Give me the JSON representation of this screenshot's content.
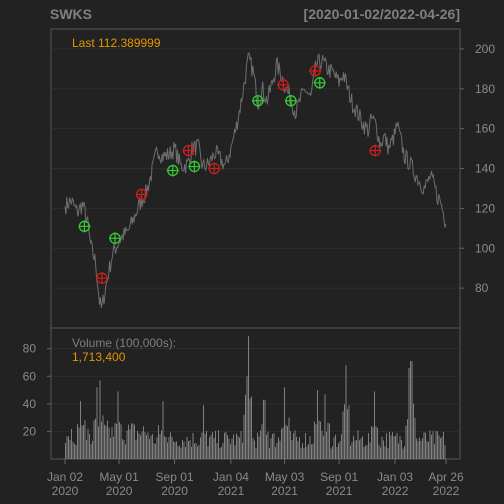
{
  "chart_data": {
    "type": "line",
    "title": "SWKS",
    "date_range": "[2020-01-02/2022-04-26]",
    "last_label": "Last 112.389999",
    "price_axis": {
      "ticks": [
        80,
        100,
        120,
        140,
        160,
        180,
        200
      ],
      "range": [
        60,
        210
      ],
      "side": "right"
    },
    "x_ticks": [
      {
        "label": "Jan 02",
        "sub": "2020",
        "date": "2020-01-02"
      },
      {
        "label": "May 01",
        "sub": "2020",
        "date": "2020-05-01"
      },
      {
        "label": "Sep 01",
        "sub": "2020",
        "date": "2020-09-01"
      },
      {
        "label": "Jan 04",
        "sub": "2021",
        "date": "2021-01-04"
      },
      {
        "label": "May 03",
        "sub": "2021",
        "date": "2021-05-03"
      },
      {
        "label": "Sep 01",
        "sub": "2021",
        "date": "2021-09-01"
      },
      {
        "label": "Jan 03",
        "sub": "2022",
        "date": "2022-01-03"
      },
      {
        "label": "Apr 26",
        "sub": "2022",
        "date": "2022-04-26"
      }
    ],
    "price_series": {
      "name": "SWKS",
      "color": "#6e6e6e",
      "points": [
        [
          "2020-01-02",
          121
        ],
        [
          "2020-01-15",
          124
        ],
        [
          "2020-01-29",
          118
        ],
        [
          "2020-02-10",
          122
        ],
        [
          "2020-02-20",
          114
        ],
        [
          "2020-02-28",
          101
        ],
        [
          "2020-03-10",
          93
        ],
        [
          "2020-03-18",
          74
        ],
        [
          "2020-03-23",
          69
        ],
        [
          "2020-04-01",
          80
        ],
        [
          "2020-04-15",
          96
        ],
        [
          "2020-04-27",
          102
        ],
        [
          "2020-05-08",
          106
        ],
        [
          "2020-05-20",
          108
        ],
        [
          "2020-06-01",
          114
        ],
        [
          "2020-06-15",
          122
        ],
        [
          "2020-06-30",
          128
        ],
        [
          "2020-07-15",
          140
        ],
        [
          "2020-07-25",
          150
        ],
        [
          "2020-08-05",
          146
        ],
        [
          "2020-08-20",
          147
        ],
        [
          "2020-09-01",
          150
        ],
        [
          "2020-09-15",
          141
        ],
        [
          "2020-09-30",
          142
        ],
        [
          "2020-10-10",
          150
        ],
        [
          "2020-10-23",
          151
        ],
        [
          "2020-11-02",
          141
        ],
        [
          "2020-11-15",
          142
        ],
        [
          "2020-11-30",
          148
        ],
        [
          "2020-12-10",
          145
        ],
        [
          "2020-12-23",
          141
        ],
        [
          "2021-01-04",
          150
        ],
        [
          "2021-01-15",
          160
        ],
        [
          "2021-01-27",
          174
        ],
        [
          "2021-02-05",
          186
        ],
        [
          "2021-02-12",
          195
        ],
        [
          "2021-02-22",
          189
        ],
        [
          "2021-03-05",
          173
        ],
        [
          "2021-03-15",
          180
        ],
        [
          "2021-03-25",
          174
        ],
        [
          "2021-04-05",
          182
        ],
        [
          "2021-04-15",
          192
        ],
        [
          "2021-04-28",
          186
        ],
        [
          "2021-05-03",
          182
        ],
        [
          "2021-05-10",
          178
        ],
        [
          "2021-05-17",
          175
        ],
        [
          "2021-05-28",
          168
        ],
        [
          "2021-06-08",
          175
        ],
        [
          "2021-06-18",
          180
        ],
        [
          "2021-06-30",
          175
        ],
        [
          "2021-07-12",
          192
        ],
        [
          "2021-07-25",
          194
        ],
        [
          "2021-08-05",
          190
        ],
        [
          "2021-08-18",
          188
        ],
        [
          "2021-09-01",
          183
        ],
        [
          "2021-09-10",
          188
        ],
        [
          "2021-09-20",
          180
        ],
        [
          "2021-09-30",
          173
        ],
        [
          "2021-10-12",
          168
        ],
        [
          "2021-10-25",
          162
        ],
        [
          "2021-11-05",
          159
        ],
        [
          "2021-11-12",
          165
        ],
        [
          "2021-11-22",
          162
        ],
        [
          "2021-12-01",
          152
        ],
        [
          "2021-12-10",
          156
        ],
        [
          "2021-12-20",
          150
        ],
        [
          "2022-01-03",
          157
        ],
        [
          "2022-01-07",
          162
        ],
        [
          "2022-01-12",
          158
        ],
        [
          "2022-01-24",
          146
        ],
        [
          "2022-02-04",
          143
        ],
        [
          "2022-02-15",
          138
        ],
        [
          "2022-02-28",
          133
        ],
        [
          "2022-03-10",
          130
        ],
        [
          "2022-03-22",
          136
        ],
        [
          "2022-03-30",
          132
        ],
        [
          "2022-04-07",
          126
        ],
        [
          "2022-04-13",
          124
        ],
        [
          "2022-04-20",
          118
        ],
        [
          "2022-04-26",
          112.39
        ]
      ]
    },
    "buy_signals": {
      "color": "#33cc33",
      "points": [
        [
          "2020-02-14",
          111
        ],
        [
          "2020-04-22",
          105
        ],
        [
          "2020-08-28",
          139
        ],
        [
          "2020-10-15",
          141
        ],
        [
          "2021-03-05",
          174
        ],
        [
          "2021-05-17",
          174
        ],
        [
          "2021-07-20",
          183
        ]
      ]
    },
    "sell_signals": {
      "color": "#cc1f1f",
      "points": [
        [
          "2020-03-24",
          85
        ],
        [
          "2020-06-20",
          127
        ],
        [
          "2020-10-02",
          149
        ],
        [
          "2020-11-28",
          140
        ],
        [
          "2021-04-30",
          182
        ],
        [
          "2021-07-10",
          189
        ],
        [
          "2021-11-20",
          149
        ]
      ]
    },
    "volume_panel": {
      "label": "Volume (100,000s):",
      "last_value": "1,713,400",
      "ticks": [
        20,
        40,
        60,
        80
      ],
      "range": [
        0,
        95
      ],
      "side": "left",
      "color": "#8c8c8c",
      "baseline": 15,
      "spikes": [
        [
          "2020-02-05",
          42
        ],
        [
          "2020-03-13",
          52
        ],
        [
          "2020-03-20",
          57
        ],
        [
          "2020-04-29",
          49
        ],
        [
          "2020-08-05",
          42
        ],
        [
          "2020-11-05",
          39
        ],
        [
          "2021-02-08",
          60
        ],
        [
          "2021-02-12",
          89
        ],
        [
          "2021-03-19",
          43
        ],
        [
          "2021-05-04",
          52
        ],
        [
          "2021-07-15",
          50
        ],
        [
          "2021-08-02",
          47
        ],
        [
          "2021-09-17",
          68
        ],
        [
          "2021-11-19",
          49
        ],
        [
          "2022-02-02",
          66
        ],
        [
          "2022-02-08",
          71
        ]
      ]
    }
  }
}
